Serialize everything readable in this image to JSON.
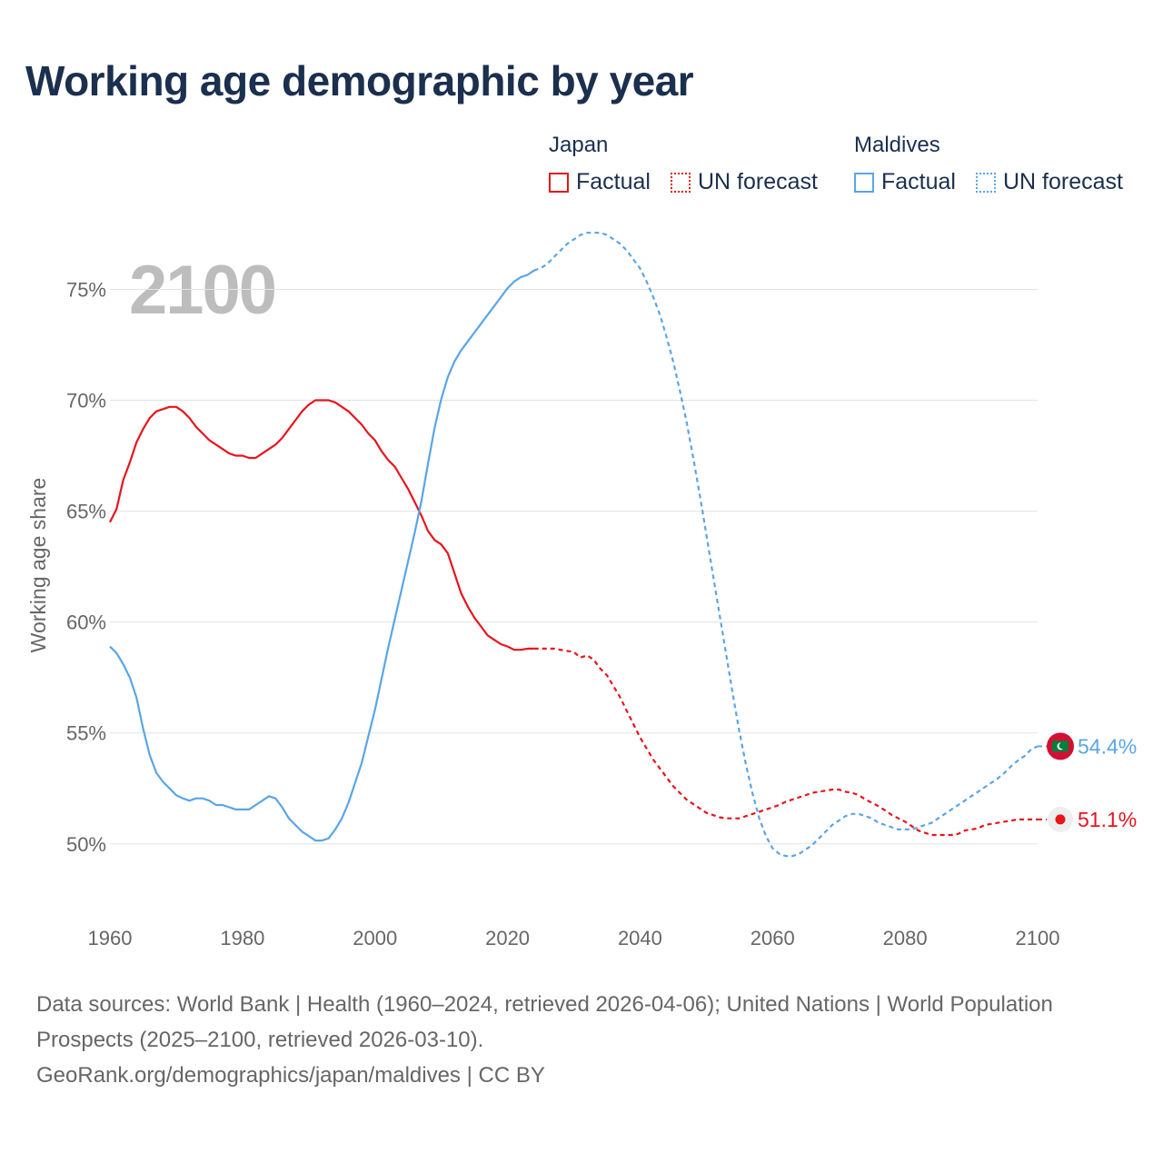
{
  "title": "Working age demographic by year",
  "year_overlay": "2100",
  "legend": {
    "groups": [
      {
        "name": "Japan",
        "color": "#e8141c",
        "factual_label": "Factual",
        "forecast_label": "UN forecast"
      },
      {
        "name": "Maldives",
        "color": "#5aa5e6",
        "factual_label": "Factual",
        "forecast_label": "UN forecast"
      }
    ]
  },
  "source": {
    "line1": "Data sources: World Bank | Health (1960–2024, retrieved 2026-04-06); United Nations | World Population Prospects (2025–2100, retrieved 2026-03-10).",
    "line2": "GeoRank.org/demographics/japan/maldives | CC BY"
  },
  "chart_data": {
    "type": "line",
    "title": "Working age demographic by year",
    "xlabel": "",
    "ylabel": "Working age share",
    "xlim": [
      1960,
      2100
    ],
    "ylim": [
      47,
      78.5
    ],
    "x_ticks": [
      1960,
      1980,
      2000,
      2020,
      2040,
      2060,
      2080,
      2100
    ],
    "y_ticks": [
      50,
      55,
      60,
      65,
      70,
      75
    ],
    "y_tick_suffix": "%",
    "grid": true,
    "factual_end_year": 2024,
    "series": [
      {
        "name": "Japan",
        "color": "#e8141c",
        "end_label": "51.1%",
        "end_icon": "japan-flag-icon",
        "points": [
          [
            1960,
            64.5
          ],
          [
            1961,
            65.1
          ],
          [
            1962,
            66.4
          ],
          [
            1963,
            67.2
          ],
          [
            1964,
            68.1
          ],
          [
            1965,
            68.7
          ],
          [
            1966,
            69.2
          ],
          [
            1967,
            69.5
          ],
          [
            1968,
            69.6
          ],
          [
            1969,
            69.7
          ],
          [
            1970,
            69.7
          ],
          [
            1971,
            69.5
          ],
          [
            1972,
            69.2
          ],
          [
            1973,
            68.8
          ],
          [
            1974,
            68.5
          ],
          [
            1975,
            68.2
          ],
          [
            1976,
            68.0
          ],
          [
            1977,
            67.8
          ],
          [
            1978,
            67.6
          ],
          [
            1979,
            67.5
          ],
          [
            1980,
            67.5
          ],
          [
            1981,
            67.4
          ],
          [
            1982,
            67.4
          ],
          [
            1983,
            67.6
          ],
          [
            1984,
            67.8
          ],
          [
            1985,
            68.0
          ],
          [
            1986,
            68.3
          ],
          [
            1987,
            68.7
          ],
          [
            1988,
            69.1
          ],
          [
            1989,
            69.5
          ],
          [
            1990,
            69.8
          ],
          [
            1991,
            70.0
          ],
          [
            1992,
            70.0
          ],
          [
            1993,
            70.0
          ],
          [
            1994,
            69.9
          ],
          [
            1995,
            69.7
          ],
          [
            1996,
            69.5
          ],
          [
            1997,
            69.2
          ],
          [
            1998,
            68.9
          ],
          [
            1999,
            68.5
          ],
          [
            2000,
            68.2
          ],
          [
            2001,
            67.7
          ],
          [
            2002,
            67.3
          ],
          [
            2003,
            67.0
          ],
          [
            2004,
            66.5
          ],
          [
            2005,
            66.0
          ],
          [
            2006,
            65.4
          ],
          [
            2007,
            64.8
          ],
          [
            2008,
            64.1
          ],
          [
            2009,
            63.7
          ],
          [
            2010,
            63.5
          ],
          [
            2011,
            63.1
          ],
          [
            2012,
            62.2
          ],
          [
            2013,
            61.3
          ],
          [
            2014,
            60.7
          ],
          [
            2015,
            60.2
          ],
          [
            2016,
            59.8
          ],
          [
            2017,
            59.4
          ],
          [
            2018,
            59.2
          ],
          [
            2019,
            59.0
          ],
          [
            2020,
            58.9
          ],
          [
            2021,
            58.75
          ],
          [
            2022,
            58.75
          ],
          [
            2023,
            58.8
          ],
          [
            2024,
            58.8
          ],
          [
            2025,
            58.8
          ],
          [
            2026,
            58.8
          ],
          [
            2027,
            58.8
          ],
          [
            2028,
            58.75
          ],
          [
            2029,
            58.7
          ],
          [
            2030,
            58.65
          ],
          [
            2031,
            58.4
          ],
          [
            2032,
            58.5
          ],
          [
            2033,
            58.3
          ],
          [
            2034,
            57.9
          ],
          [
            2035,
            57.6
          ],
          [
            2036,
            57.1
          ],
          [
            2037,
            56.6
          ],
          [
            2038,
            56.0
          ],
          [
            2039,
            55.4
          ],
          [
            2040,
            54.8
          ],
          [
            2041,
            54.3
          ],
          [
            2042,
            53.8
          ],
          [
            2043,
            53.4
          ],
          [
            2044,
            53.0
          ],
          [
            2045,
            52.6
          ],
          [
            2046,
            52.3
          ],
          [
            2047,
            52.0
          ],
          [
            2048,
            51.8
          ],
          [
            2049,
            51.6
          ],
          [
            2050,
            51.4
          ],
          [
            2051,
            51.3
          ],
          [
            2052,
            51.2
          ],
          [
            2053,
            51.15
          ],
          [
            2054,
            51.15
          ],
          [
            2055,
            51.15
          ],
          [
            2056,
            51.25
          ],
          [
            2057,
            51.35
          ],
          [
            2058,
            51.45
          ],
          [
            2059,
            51.55
          ],
          [
            2060,
            51.65
          ],
          [
            2061,
            51.75
          ],
          [
            2062,
            51.9
          ],
          [
            2063,
            52.0
          ],
          [
            2064,
            52.1
          ],
          [
            2065,
            52.2
          ],
          [
            2066,
            52.3
          ],
          [
            2067,
            52.35
          ],
          [
            2068,
            52.4
          ],
          [
            2069,
            52.45
          ],
          [
            2070,
            52.45
          ],
          [
            2071,
            52.35
          ],
          [
            2072,
            52.3
          ],
          [
            2073,
            52.2
          ],
          [
            2074,
            52.0
          ],
          [
            2075,
            51.85
          ],
          [
            2076,
            51.7
          ],
          [
            2077,
            51.5
          ],
          [
            2078,
            51.3
          ],
          [
            2079,
            51.15
          ],
          [
            2080,
            51.0
          ],
          [
            2081,
            50.8
          ],
          [
            2082,
            50.6
          ],
          [
            2083,
            50.5
          ],
          [
            2084,
            50.4
          ],
          [
            2085,
            50.4
          ],
          [
            2086,
            50.4
          ],
          [
            2087,
            50.4
          ],
          [
            2088,
            50.45
          ],
          [
            2089,
            50.6
          ],
          [
            2090,
            50.65
          ],
          [
            2091,
            50.7
          ],
          [
            2092,
            50.85
          ],
          [
            2093,
            50.9
          ],
          [
            2094,
            50.95
          ],
          [
            2095,
            51.0
          ],
          [
            2096,
            51.05
          ],
          [
            2097,
            51.1
          ],
          [
            2098,
            51.1
          ],
          [
            2099,
            51.1
          ],
          [
            2100,
            51.1
          ]
        ]
      },
      {
        "name": "Maldives",
        "color": "#5aa5e6",
        "end_label": "54.4%",
        "end_icon": "maldives-flag-icon",
        "points": [
          [
            1960,
            58.9
          ],
          [
            1961,
            58.6
          ],
          [
            1962,
            58.1
          ],
          [
            1963,
            57.5
          ],
          [
            1964,
            56.6
          ],
          [
            1965,
            55.2
          ],
          [
            1966,
            54.0
          ],
          [
            1967,
            53.2
          ],
          [
            1968,
            52.8
          ],
          [
            1969,
            52.5
          ],
          [
            1970,
            52.2
          ],
          [
            1971,
            52.05
          ],
          [
            1972,
            51.95
          ],
          [
            1973,
            52.05
          ],
          [
            1974,
            52.05
          ],
          [
            1975,
            51.95
          ],
          [
            1976,
            51.75
          ],
          [
            1977,
            51.75
          ],
          [
            1978,
            51.65
          ],
          [
            1979,
            51.55
          ],
          [
            1980,
            51.55
          ],
          [
            1981,
            51.55
          ],
          [
            1982,
            51.75
          ],
          [
            1983,
            51.95
          ],
          [
            1984,
            52.15
          ],
          [
            1985,
            52.05
          ],
          [
            1986,
            51.65
          ],
          [
            1987,
            51.15
          ],
          [
            1988,
            50.85
          ],
          [
            1989,
            50.55
          ],
          [
            1990,
            50.35
          ],
          [
            1991,
            50.15
          ],
          [
            1992,
            50.15
          ],
          [
            1993,
            50.25
          ],
          [
            1994,
            50.65
          ],
          [
            1995,
            51.15
          ],
          [
            1996,
            51.85
          ],
          [
            1997,
            52.75
          ],
          [
            1998,
            53.65
          ],
          [
            1999,
            54.85
          ],
          [
            2000,
            56.05
          ],
          [
            2001,
            57.45
          ],
          [
            2002,
            58.85
          ],
          [
            2003,
            60.15
          ],
          [
            2004,
            61.45
          ],
          [
            2005,
            62.75
          ],
          [
            2006,
            64.05
          ],
          [
            2007,
            65.45
          ],
          [
            2008,
            67.15
          ],
          [
            2009,
            68.75
          ],
          [
            2010,
            70.05
          ],
          [
            2011,
            71.05
          ],
          [
            2012,
            71.75
          ],
          [
            2013,
            72.25
          ],
          [
            2014,
            72.65
          ],
          [
            2015,
            73.05
          ],
          [
            2016,
            73.45
          ],
          [
            2017,
            73.85
          ],
          [
            2018,
            74.25
          ],
          [
            2019,
            74.65
          ],
          [
            2020,
            75.05
          ],
          [
            2021,
            75.35
          ],
          [
            2022,
            75.55
          ],
          [
            2023,
            75.65
          ],
          [
            2024,
            75.85
          ],
          [
            2025,
            75.95
          ],
          [
            2026,
            76.15
          ],
          [
            2027,
            76.45
          ],
          [
            2028,
            76.75
          ],
          [
            2029,
            77.05
          ],
          [
            2030,
            77.25
          ],
          [
            2031,
            77.45
          ],
          [
            2032,
            77.55
          ],
          [
            2033,
            77.55
          ],
          [
            2034,
            77.55
          ],
          [
            2035,
            77.45
          ],
          [
            2036,
            77.25
          ],
          [
            2037,
            77.05
          ],
          [
            2038,
            76.75
          ],
          [
            2039,
            76.35
          ],
          [
            2040,
            75.95
          ],
          [
            2041,
            75.35
          ],
          [
            2042,
            74.65
          ],
          [
            2043,
            73.85
          ],
          [
            2044,
            72.85
          ],
          [
            2045,
            71.75
          ],
          [
            2046,
            70.45
          ],
          [
            2047,
            69.05
          ],
          [
            2048,
            67.45
          ],
          [
            2049,
            65.75
          ],
          [
            2050,
            63.95
          ],
          [
            2051,
            62.15
          ],
          [
            2052,
            60.35
          ],
          [
            2053,
            58.55
          ],
          [
            2054,
            56.75
          ],
          [
            2055,
            55.05
          ],
          [
            2056,
            53.55
          ],
          [
            2057,
            52.25
          ],
          [
            2058,
            51.15
          ],
          [
            2059,
            50.35
          ],
          [
            2060,
            49.8
          ],
          [
            2061,
            49.55
          ],
          [
            2062,
            49.45
          ],
          [
            2063,
            49.45
          ],
          [
            2064,
            49.55
          ],
          [
            2065,
            49.75
          ],
          [
            2066,
            49.95
          ],
          [
            2067,
            50.25
          ],
          [
            2068,
            50.55
          ],
          [
            2069,
            50.85
          ],
          [
            2070,
            51.05
          ],
          [
            2071,
            51.25
          ],
          [
            2072,
            51.35
          ],
          [
            2073,
            51.35
          ],
          [
            2074,
            51.25
          ],
          [
            2075,
            51.15
          ],
          [
            2076,
            50.95
          ],
          [
            2077,
            50.85
          ],
          [
            2078,
            50.75
          ],
          [
            2079,
            50.65
          ],
          [
            2080,
            50.65
          ],
          [
            2081,
            50.65
          ],
          [
            2082,
            50.75
          ],
          [
            2083,
            50.85
          ],
          [
            2084,
            50.95
          ],
          [
            2085,
            51.15
          ],
          [
            2086,
            51.35
          ],
          [
            2087,
            51.55
          ],
          [
            2088,
            51.75
          ],
          [
            2089,
            51.95
          ],
          [
            2090,
            52.15
          ],
          [
            2091,
            52.35
          ],
          [
            2092,
            52.55
          ],
          [
            2093,
            52.75
          ],
          [
            2094,
            52.95
          ],
          [
            2095,
            53.2
          ],
          [
            2096,
            53.5
          ],
          [
            2097,
            53.75
          ],
          [
            2098,
            53.95
          ],
          [
            2099,
            54.25
          ],
          [
            2100,
            54.4
          ]
        ]
      }
    ]
  }
}
